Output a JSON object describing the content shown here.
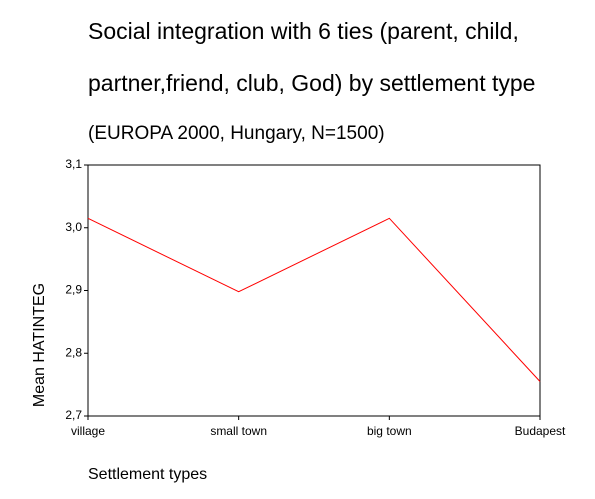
{
  "chart_data": {
    "type": "line",
    "title_lines": [
      "Social integration with 6 ties (parent, child,",
      "partner,friend, club, God) by  settlement type"
    ],
    "subtitle": "(EUROPA 2000, Hungary, N=1500)",
    "y_label": "Mean HATINTEG",
    "x_label": "Settlement types",
    "categories": [
      "village",
      "small town",
      "big town",
      "Budapest"
    ],
    "series": [
      {
        "name": "Mean HATINTEG",
        "color": "#ff0000",
        "values": [
          3.015,
          2.898,
          3.015,
          2.755
        ]
      }
    ],
    "ylim": [
      2.7,
      3.1
    ],
    "yticks": [
      {
        "value": 2.7,
        "label": "2,7"
      },
      {
        "value": 2.8,
        "label": "2,8"
      },
      {
        "value": 2.9,
        "label": "2,9"
      },
      {
        "value": 3.0,
        "label": "3,0"
      },
      {
        "value": 3.1,
        "label": "3,1"
      }
    ]
  }
}
